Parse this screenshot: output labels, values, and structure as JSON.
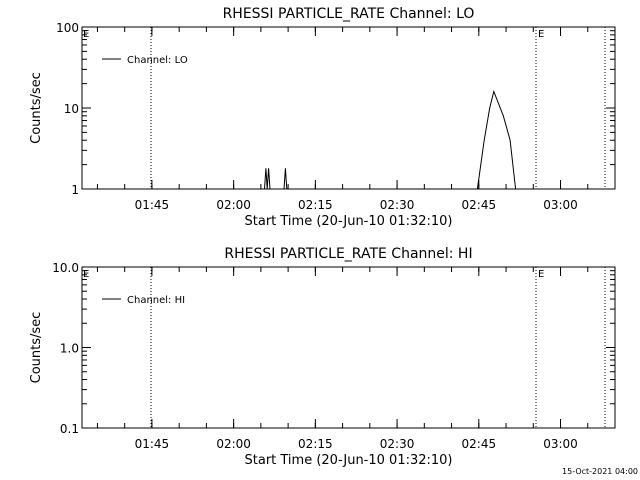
{
  "chart_data": [
    {
      "type": "line",
      "title": "RHESSI PARTICLE_RATE Channel: LO",
      "ylabel": "Counts/sec",
      "xlabel": "Start Time (20-Jun-10 01:32:10)",
      "y_scale": "log",
      "ylim": [
        1,
        100
      ],
      "y_ticks": [
        "1",
        "10",
        "100"
      ],
      "xlim": [
        "01:32:10",
        "03:10"
      ],
      "x_ticks": [
        "01:45",
        "02:00",
        "02:15",
        "02:30",
        "02:45",
        "03:00"
      ],
      "legend": "Channel: LO",
      "legend_placement": "top-left",
      "vlines": [
        {
          "x": "01:44:50",
          "style": "dotted"
        },
        {
          "x": "02:55:30",
          "style": "dotted",
          "label": "E"
        },
        {
          "x": "03:08:10",
          "style": "dotted"
        }
      ],
      "corner_label": "E",
      "series": [
        {
          "name": "Channel: LO",
          "points": [
            [
              "02:05:40",
              1
            ],
            [
              "02:05:55",
              1.8
            ],
            [
              "02:06:10",
              1
            ],
            [
              "02:06:25",
              1.8
            ],
            [
              "02:06:40",
              1
            ],
            [
              "02:09:15",
              1
            ],
            [
              "02:09:30",
              1.8
            ],
            [
              "02:09:45",
              1
            ],
            [
              "02:44:45",
              1
            ],
            [
              "02:46:00",
              4.0
            ],
            [
              "02:47:00",
              10
            ],
            [
              "02:47:45",
              16
            ],
            [
              "02:49:30",
              8
            ],
            [
              "02:50:45",
              4.0
            ],
            [
              "02:51:45",
              1
            ]
          ]
        }
      ]
    },
    {
      "type": "line",
      "title": "RHESSI PARTICLE_RATE Channel: HI",
      "ylabel": "Counts/sec",
      "xlabel": "Start Time (20-Jun-10 01:32:10)",
      "y_scale": "log",
      "ylim": [
        0.1,
        10
      ],
      "y_ticks": [
        "0.1",
        "1.0",
        "10.0"
      ],
      "xlim": [
        "01:32:10",
        "03:10"
      ],
      "x_ticks": [
        "01:45",
        "02:00",
        "02:15",
        "02:30",
        "02:45",
        "03:00"
      ],
      "legend": "Channel: HI",
      "legend_placement": "top-left",
      "vlines": [
        {
          "x": "01:44:50",
          "style": "dotted"
        },
        {
          "x": "02:55:30",
          "style": "dotted",
          "label": "E"
        },
        {
          "x": "03:08:10",
          "style": "dotted"
        }
      ],
      "corner_label": "E",
      "series": [
        {
          "name": "Channel: HI",
          "points": []
        }
      ]
    }
  ],
  "footer": "15-Oct-2021 04:00"
}
